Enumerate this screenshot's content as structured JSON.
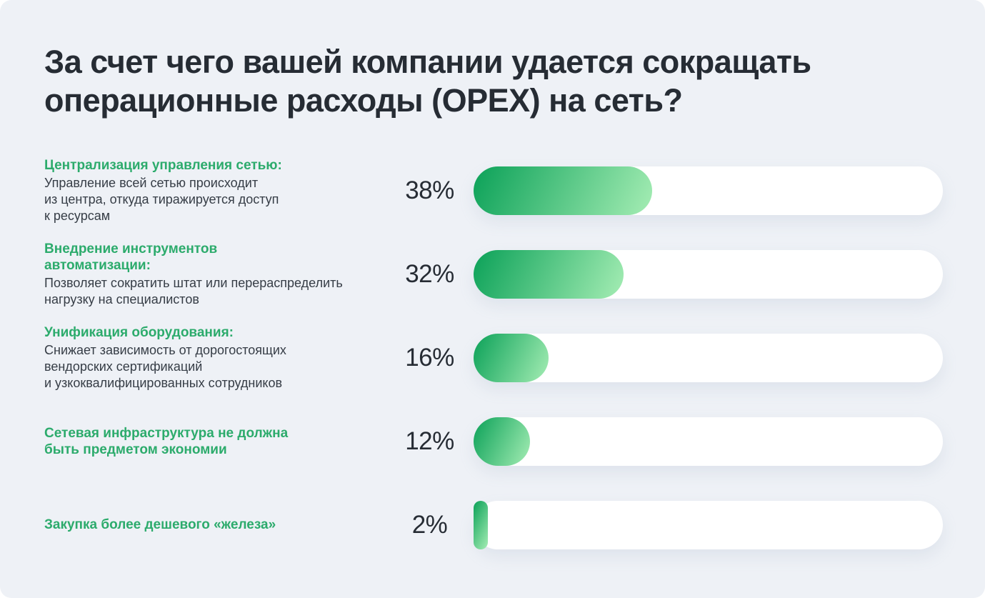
{
  "title": "За счет чего вашей компании удается сокращать\nоперационные расходы (OPEX) на сеть?",
  "colors": {
    "page_background": "#eef1f6",
    "title_text": "#262c34",
    "body_text": "#363d46",
    "heading_green": "#2cab6c",
    "bar_gradient_start": "#0ba158",
    "bar_gradient_end": "#a5edb4",
    "bar_track": "#ffffff"
  },
  "items": [
    {
      "heading": "Централизация управления сетью:",
      "description": "Управление всей сетью происходит\nиз центра, откуда тиражируется доступ\nк ресурсам",
      "value": 38,
      "value_label": "38%"
    },
    {
      "heading": "Внедрение инструментов\nавтоматизации:",
      "description": "Позволяет сократить штат или перераспределить\nнагрузку на специалистов",
      "value": 32,
      "value_label": "32%"
    },
    {
      "heading": "Унификация оборудования:",
      "description": "Снижает зависимость от дорогостоящих\nвендорских сертификаций\nи узкоквалифицированных сотрудников",
      "value": 16,
      "value_label": "16%"
    },
    {
      "heading": "Сетевая инфраструктура не должна\nбыть предметом экономии",
      "description": "",
      "value": 12,
      "value_label": "12%"
    },
    {
      "heading": "Закупка более дешевого «железа»",
      "description": "",
      "value": 2,
      "value_label": "2%"
    }
  ],
  "chart_data": {
    "type": "bar",
    "orientation": "horizontal",
    "title": "За счет чего вашей компании удается сокращать операционные расходы (OPEX) на сеть?",
    "unit": "%",
    "xlim": [
      0,
      100
    ],
    "grid": false,
    "legend": false,
    "categories": [
      "Централизация управления сетью",
      "Внедрение инструментов автоматизации",
      "Унификация оборудования",
      "Сетевая инфраструктура не должна быть предметом экономии",
      "Закупка более дешевого «железа»"
    ],
    "values": [
      38,
      32,
      16,
      12,
      2
    ],
    "annotations": [
      "Управление всей сетью происходит из центра, откуда тиражируется доступ к ресурсам",
      "Позволяет сократить штат или перераспределить нагрузку на специалистов",
      "Снижает зависимость от дорогостоящих вендорских сертификаций и узкоквалифицированных сотрудников",
      "",
      ""
    ]
  }
}
